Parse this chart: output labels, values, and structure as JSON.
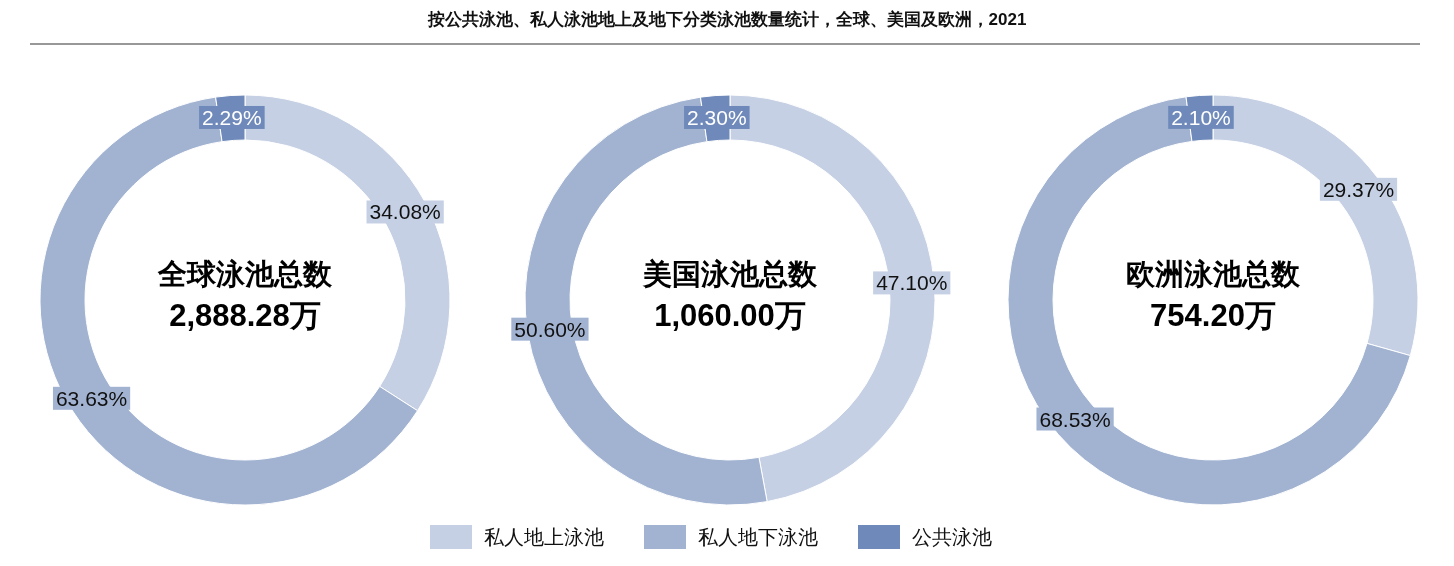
{
  "chart_data": [
    {
      "type": "donut",
      "categories": [
        null,
        null,
        null
      ],
      "values": [
        34.08,
        63.63,
        2.29
      ],
      "value_labels": [
        "34.08%",
        "63.63%",
        "2.29%"
      ],
      "colors": [
        "#c5d0e4",
        "#a2b3d2",
        "#6f8aba"
      ],
      "annotations": [
        "全球泳池总数",
        "2,888.28万"
      ]
    },
    {
      "type": "donut",
      "title": "按公共泳池、私人泳池地上及地下分类泳池数量统计，全球、美国及欧洲，2021",
      "categories": [
        "私人地上泳池",
        "私人地下泳池",
        "公共泳池"
      ],
      "values": [
        47.1,
        50.6,
        2.3
      ],
      "value_labels": [
        "47.10%",
        "50.60%",
        "2.30%"
      ],
      "colors": [
        "#c5d0e4",
        "#a2b3d2",
        "#6f8aba"
      ],
      "annotations": [
        "美国泳池总数",
        "1,060.00万"
      ],
      "legend": "bottom"
    },
    {
      "type": "donut",
      "categories": [
        null,
        null,
        null
      ],
      "values": [
        29.37,
        68.53,
        2.1
      ],
      "value_labels": [
        "29.37%",
        "68.53%",
        "2.10%"
      ],
      "colors": [
        "#c5d0e4",
        "#a2b3d2",
        "#6f8aba"
      ],
      "annotations": [
        "欧洲泳池总数",
        "754.20万"
      ]
    }
  ]
}
